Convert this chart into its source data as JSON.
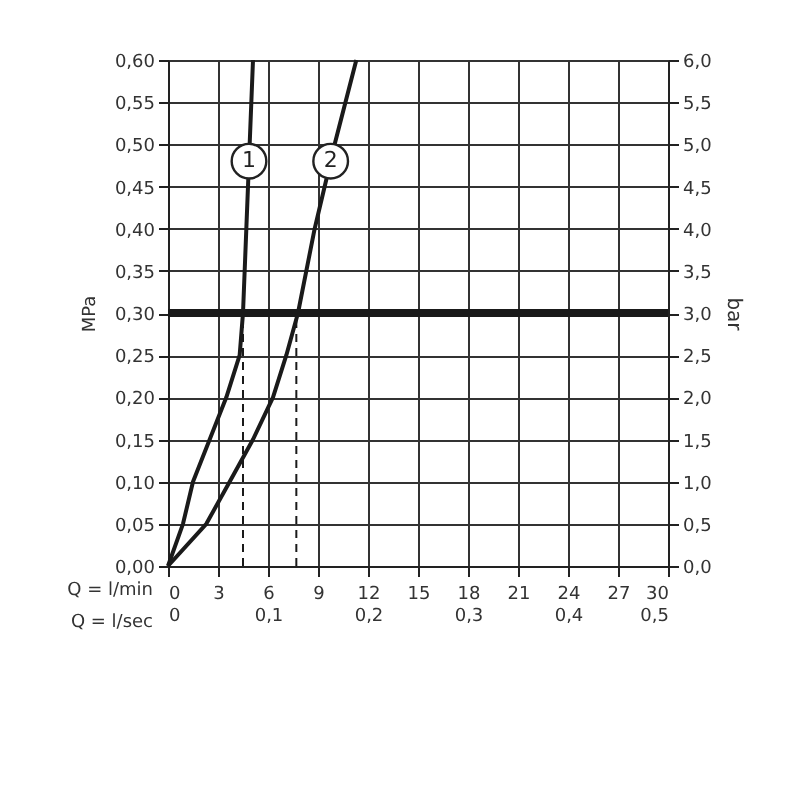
{
  "chart_data": {
    "type": "line",
    "xlabel": "Q = l/min",
    "x2label": "Q = l/sec",
    "ylabel": "MPa",
    "y2label": "bar",
    "series": [
      {
        "name": "1",
        "color": "#1a1a1a",
        "x": [
          0,
          0.9,
          1.5,
          2.5,
          3.5,
          4.3,
          4.5,
          4.7,
          4.9,
          5.1
        ],
        "values": [
          0,
          0.05,
          0.1,
          0.15,
          0.2,
          0.25,
          0.3,
          0.4,
          0.5,
          0.6
        ]
      },
      {
        "name": "2",
        "color": "#1a1a1a",
        "x": [
          0,
          2.3,
          3.7,
          5.1,
          6.3,
          7.1,
          7.8,
          8.8,
          10.0,
          11.3
        ],
        "values": [
          0,
          0.05,
          0.1,
          0.15,
          0.2,
          0.25,
          0.3,
          0.4,
          0.5,
          0.6
        ]
      }
    ],
    "xlim": [
      0,
      30
    ],
    "xticks": [
      0,
      3,
      6,
      9,
      12,
      15,
      18,
      21,
      24,
      27,
      30
    ],
    "x2lim": [
      0,
      0.5
    ],
    "x2ticks": [
      {
        "value": 0,
        "label": "0"
      },
      {
        "value": 0.1,
        "label": "0,1"
      },
      {
        "value": 0.2,
        "label": "0,2"
      },
      {
        "value": 0.3,
        "label": "0,3"
      },
      {
        "value": 0.4,
        "label": "0,4"
      },
      {
        "value": 0.5,
        "label": "0,5"
      }
    ],
    "ylim": [
      0,
      0.6
    ],
    "yticks": [
      {
        "value": 0,
        "label": "0,00"
      },
      {
        "value": 0.05,
        "label": "0,05"
      },
      {
        "value": 0.1,
        "label": "0,10"
      },
      {
        "value": 0.15,
        "label": "0,15"
      },
      {
        "value": 0.2,
        "label": "0,20"
      },
      {
        "value": 0.25,
        "label": "0,25"
      },
      {
        "value": 0.3,
        "label": "0,30"
      },
      {
        "value": 0.35,
        "label": "0,35"
      },
      {
        "value": 0.4,
        "label": "0,40"
      },
      {
        "value": 0.45,
        "label": "0,45"
      },
      {
        "value": 0.5,
        "label": "0,50"
      },
      {
        "value": 0.55,
        "label": "0,55"
      },
      {
        "value": 0.6,
        "label": "0,60"
      }
    ],
    "y2lim": [
      0,
      6
    ],
    "y2ticks": [
      {
        "value": 0,
        "label": "0,0"
      },
      {
        "value": 0.5,
        "label": "0,5"
      },
      {
        "value": 1,
        "label": "1,0"
      },
      {
        "value": 1.5,
        "label": "1,5"
      },
      {
        "value": 2,
        "label": "2,0"
      },
      {
        "value": 2.5,
        "label": "2,5"
      },
      {
        "value": 3,
        "label": "3,0"
      },
      {
        "value": 3.5,
        "label": "3,5"
      },
      {
        "value": 4,
        "label": "4,0"
      },
      {
        "value": 4.5,
        "label": "4,5"
      },
      {
        "value": 5,
        "label": "5,0"
      },
      {
        "value": 5.5,
        "label": "5,5"
      },
      {
        "value": 6,
        "label": "6,0"
      }
    ],
    "ref_lines": [
      {
        "axis": "y",
        "value": 0.3,
        "color": "#1a1a1a"
      },
      {
        "axis": "x",
        "value": 4.5,
        "color": "#1a1a1a",
        "line_style": "dashed"
      },
      {
        "axis": "x",
        "value": 7.7,
        "color": "#1a1a1a",
        "line_style": "dashed"
      }
    ],
    "grid": true,
    "legend": false,
    "marker": "none",
    "line_style": "solid"
  }
}
